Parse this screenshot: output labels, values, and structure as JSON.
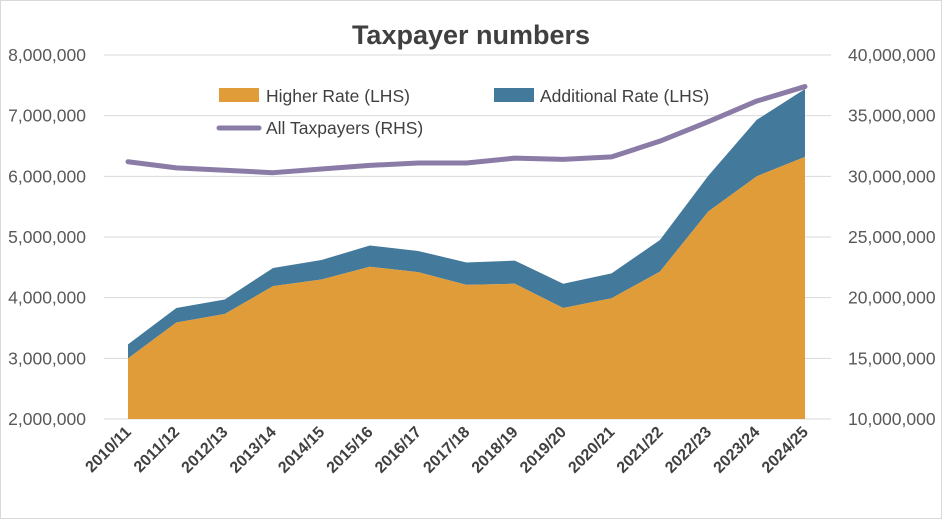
{
  "chart_data": {
    "type": "area",
    "title": "Taxpayer numbers",
    "categories": [
      "2010/11",
      "2011/12",
      "2012/13",
      "2013/14",
      "2014/15",
      "2015/16",
      "2016/17",
      "2017/18",
      "2018/19",
      "2019/20",
      "2020/21",
      "2021/22",
      "2022/23",
      "2023/24",
      "2024/25"
    ],
    "series": [
      {
        "name": "Higher Rate (LHS)",
        "axis": "left",
        "type": "stacked-area",
        "color": "#E09C38",
        "values": [
          3000000,
          3590000,
          3730000,
          4190000,
          4300000,
          4510000,
          4420000,
          4210000,
          4230000,
          3830000,
          3990000,
          4430000,
          5420000,
          6000000,
          6320000
        ]
      },
      {
        "name": "Additional Rate (LHS)",
        "axis": "left",
        "type": "stacked-area",
        "color": "#43799A",
        "values": [
          230000,
          240000,
          240000,
          300000,
          320000,
          350000,
          350000,
          370000,
          380000,
          400000,
          410000,
          520000,
          590000,
          930000,
          1120000
        ]
      },
      {
        "name": "All Taxpayers (RHS)",
        "axis": "right",
        "type": "line",
        "color": "#8A7CA6",
        "values": [
          31200000,
          30700000,
          30500000,
          30300000,
          30600000,
          30900000,
          31100000,
          31100000,
          31500000,
          31400000,
          31600000,
          32900000,
          34500000,
          36200000,
          37400000
        ]
      }
    ],
    "left_axis": {
      "min": 2000000,
      "max": 8000000,
      "step": 1000000,
      "tick_labels": [
        "2,000,000",
        "3,000,000",
        "4,000,000",
        "5,000,000",
        "6,000,000",
        "7,000,000",
        "8,000,000"
      ]
    },
    "right_axis": {
      "min": 10000000,
      "max": 40000000,
      "step": 5000000,
      "tick_labels": [
        "10,000,000",
        "15,000,000",
        "20,000,000",
        "25,000,000",
        "30,000,000",
        "35,000,000",
        "40,000,000"
      ]
    },
    "grid": true,
    "legend_position": "top-center, inside plot"
  }
}
